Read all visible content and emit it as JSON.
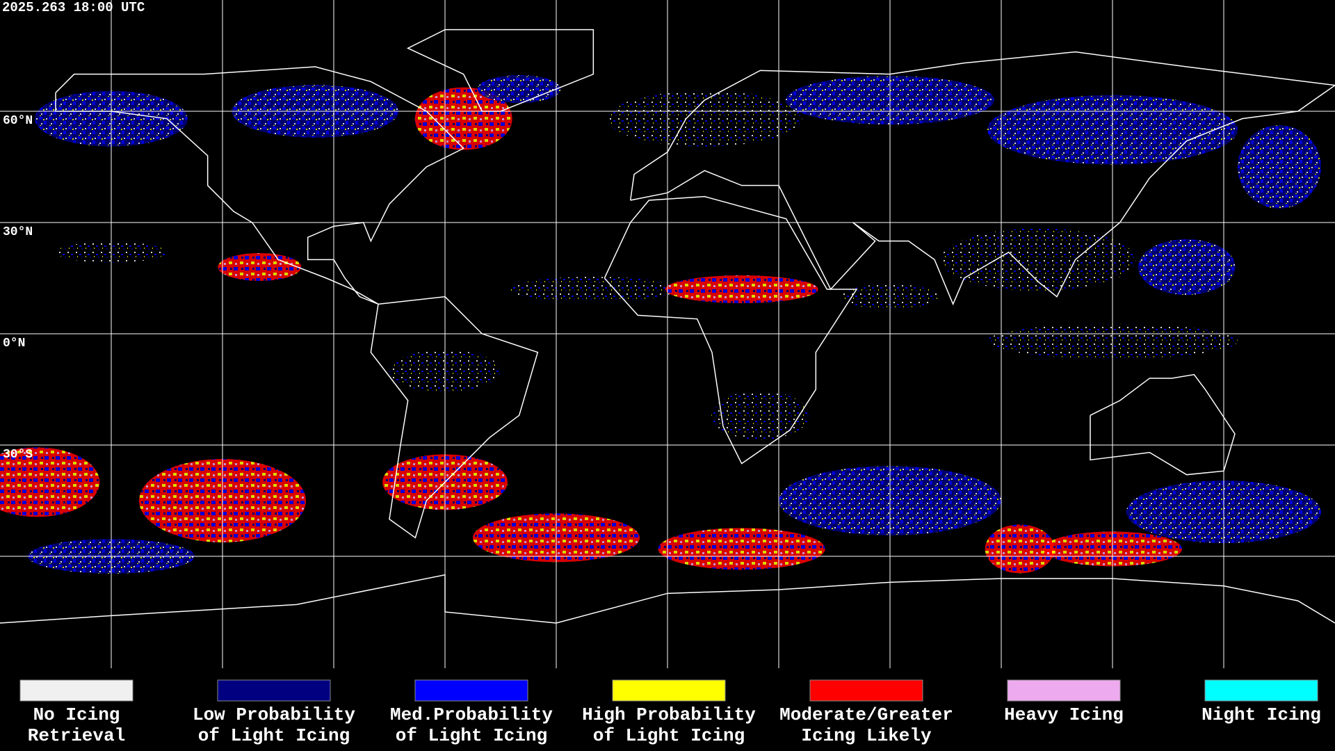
{
  "header": {
    "timestamp": "2025.263 18:00 UTC"
  },
  "map": {
    "latitude_labels": [
      "60°N",
      "30°N",
      "0°N",
      "30°S"
    ]
  },
  "legend": [
    {
      "label_lines": [
        "No Icing",
        "Retrieval"
      ],
      "color": "#f0f0f0"
    },
    {
      "label_lines": [
        "Low Probability",
        "of Light Icing"
      ],
      "color": "#000080"
    },
    {
      "label_lines": [
        "Med.Probability",
        "of Light Icing"
      ],
      "color": "#0000ff"
    },
    {
      "label_lines": [
        "High Probability",
        "of Light Icing"
      ],
      "color": "#ffff00"
    },
    {
      "label_lines": [
        "Moderate/Greater",
        "Icing Likely"
      ],
      "color": "#ff0000"
    },
    {
      "label_lines": [
        "Heavy Icing"
      ],
      "color": "#eeaaee"
    },
    {
      "label_lines": [
        "Night Icing"
      ],
      "color": "#00ffff"
    }
  ]
}
